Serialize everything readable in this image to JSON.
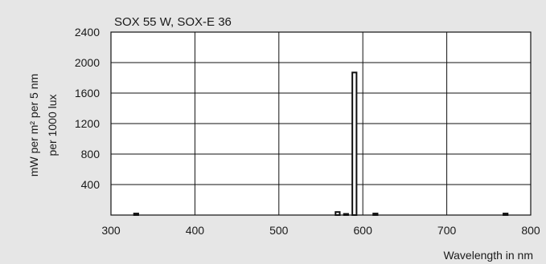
{
  "chart_data": {
    "type": "bar",
    "title": "SOX 55 W, SOX-E 36",
    "xlabel": "Wavelength in nm",
    "ylabel_lines": [
      "mW per m²  per 5 nm",
      "per 1000 lux"
    ],
    "xlim": [
      300,
      800
    ],
    "ylim": [
      0,
      2400
    ],
    "x_ticks": [
      300,
      400,
      500,
      600,
      700,
      800
    ],
    "y_ticks": [
      400,
      800,
      1200,
      1600,
      2000,
      2400
    ],
    "grid": true,
    "bin_width_nm": 5,
    "bars": [
      {
        "x": 330,
        "value": 20
      },
      {
        "x": 570,
        "value": 40
      },
      {
        "x": 580,
        "value": 15
      },
      {
        "x": 590,
        "value": 1870
      },
      {
        "x": 615,
        "value": 20
      },
      {
        "x": 770,
        "value": 20
      }
    ]
  },
  "colors": {
    "background": "#e6e6e6",
    "plot_area": "#ffffff",
    "ink": "#111111"
  }
}
